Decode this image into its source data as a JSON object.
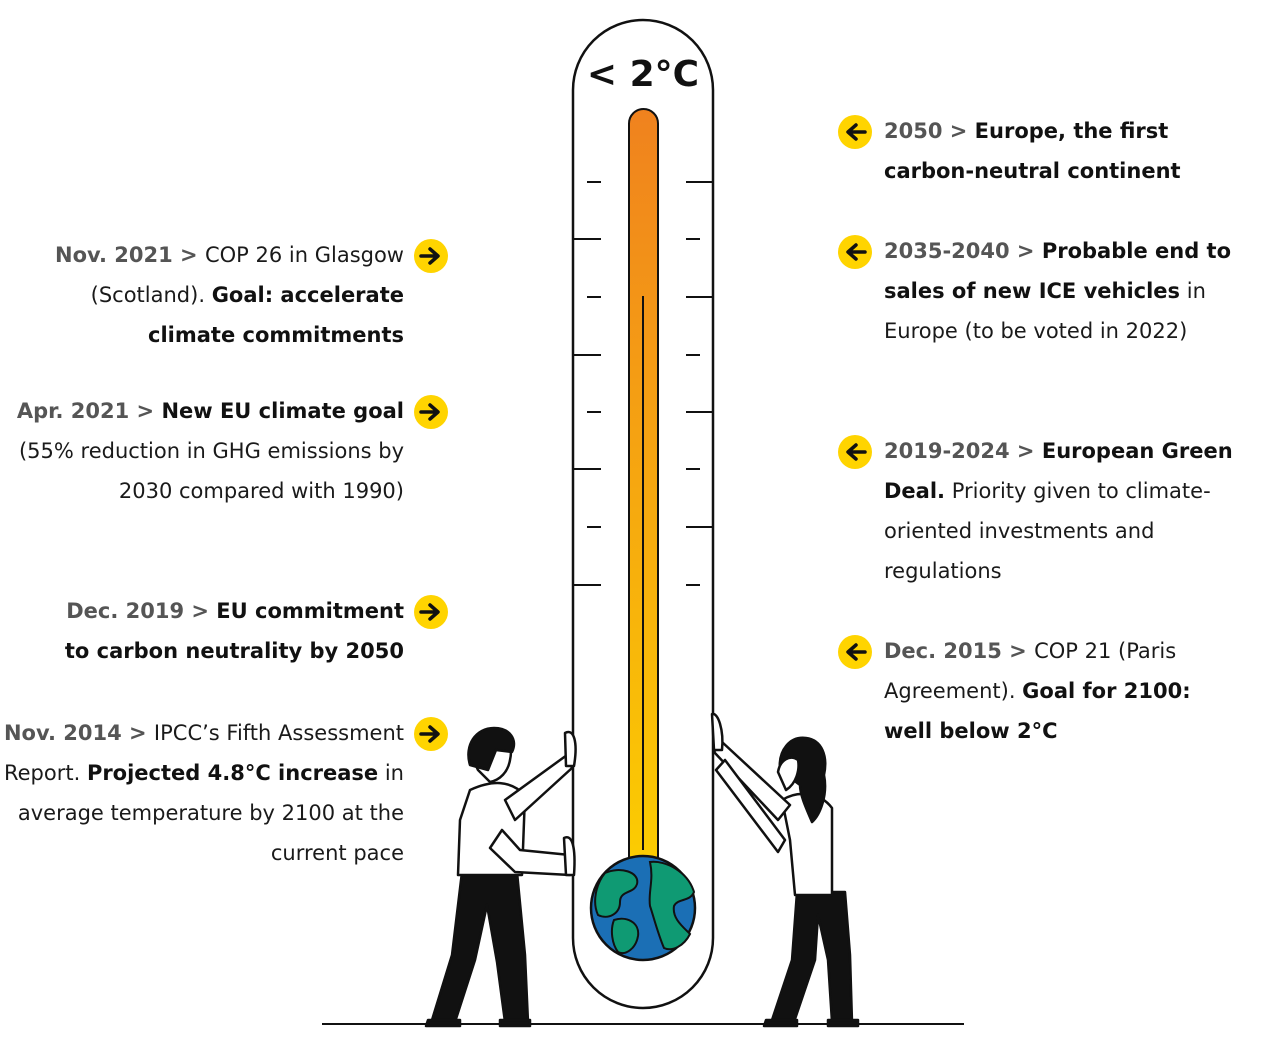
{
  "thermometer": {
    "label": "< 2°C"
  },
  "left_events": [
    {
      "date": "Nov. 2021",
      "sep": " > ",
      "parts": [
        {
          "t": "COP 26 in Glasgow (Scotland). ",
          "b": false
        },
        {
          "t": "Goal: accelerate climate commitments",
          "b": true
        }
      ]
    },
    {
      "date": "Apr. 2021",
      "sep": " > ",
      "parts": [
        {
          "t": "New EU climate goal",
          "b": true
        },
        {
          "t": " (55% reduction in GHG emissions by 2030 compared with 1990)",
          "b": false
        }
      ]
    },
    {
      "date": "Dec. 2019",
      "sep": " > ",
      "parts": [
        {
          "t": "EU commitment to carbon neutrality by 2050",
          "b": true
        }
      ]
    },
    {
      "date": "Nov. 2014",
      "sep": " > ",
      "parts": [
        {
          "t": "IPCC’s Fifth Assessment Report. ",
          "b": false
        },
        {
          "t": "Projected 4.8°C increase",
          "b": true
        },
        {
          "t": " in average temperature by 2100 at the current pace",
          "b": false
        }
      ]
    }
  ],
  "right_events": [
    {
      "date": "2050",
      "sep": " > ",
      "parts": [
        {
          "t": "Europe, the first carbon-neutral continent",
          "b": true
        }
      ]
    },
    {
      "date": "2035-2040",
      "sep": " > ",
      "parts": [
        {
          "t": "Probable end to sales of new ICE vehicles",
          "b": true
        },
        {
          "t": " in Europe (to be voted in 2022)",
          "b": false
        }
      ]
    },
    {
      "date": "2019-2024",
      "sep": " > ",
      "parts": [
        {
          "t": "European Green Deal.",
          "b": true
        },
        {
          "t": " Priority given to climate-oriented investments and regulations",
          "b": false
        }
      ]
    },
    {
      "date": "Dec. 2015",
      "sep": " > ",
      "parts": [
        {
          "t": "COP 21 (Paris Agreement). ",
          "b": false
        },
        {
          "t": "Goal for 2100: well below 2°C",
          "b": true
        }
      ]
    }
  ],
  "colors": {
    "arrow": "#ffd400",
    "mercury_top": "#f0821e",
    "mercury_bottom": "#fcd000",
    "ocean": "#1b6fb5",
    "land": "#0f9a73",
    "outline": "#111111"
  },
  "icons": {
    "arrow_right": "arrow-right-icon",
    "arrow_left": "arrow-left-icon",
    "globe": "globe-icon"
  }
}
